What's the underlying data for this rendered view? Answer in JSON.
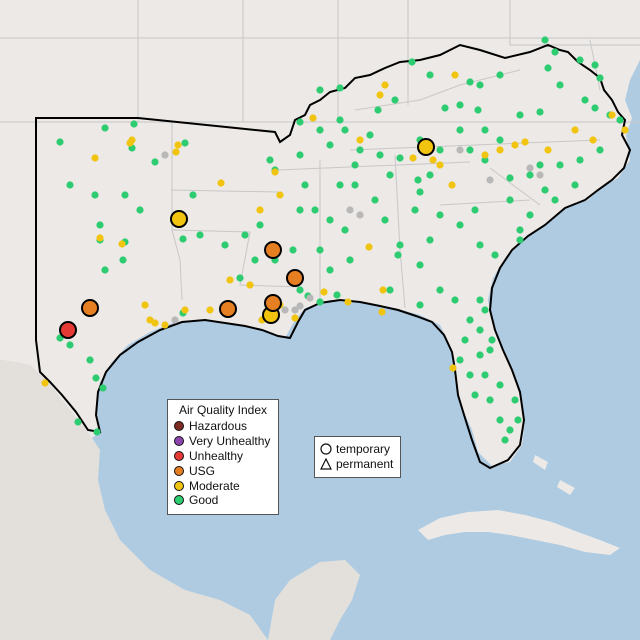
{
  "legend": {
    "title": "Air Quality Index",
    "categories": [
      {
        "label": "Hazardous",
        "color": "#7e2b25"
      },
      {
        "label": "Very Unhealthy",
        "color": "#8e44ad"
      },
      {
        "label": "Unhealthy",
        "color": "#e53935"
      },
      {
        "label": "USG",
        "color": "#e67e22"
      },
      {
        "label": "Moderate",
        "color": "#f1c40f"
      },
      {
        "label": "Good",
        "color": "#2ecc71"
      }
    ]
  },
  "type_legend": {
    "temporary": "temporary",
    "permanent": "permanent"
  },
  "colors": {
    "ocean": "#aecbe2",
    "land": "#ece9e6",
    "boundary": "#000000",
    "no_data": "#b8b8b8"
  }
}
